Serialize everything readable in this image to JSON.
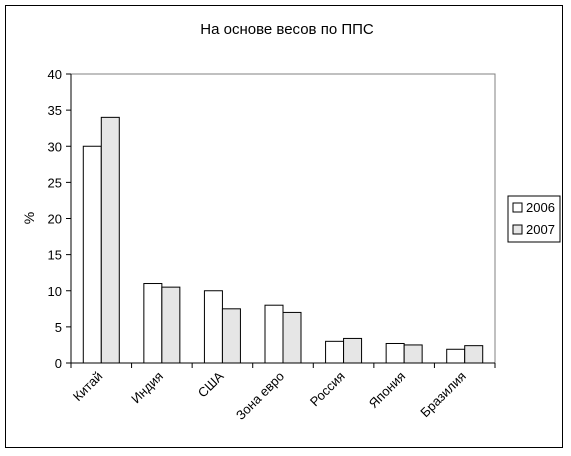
{
  "chart_data": {
    "type": "bar",
    "title": "На основе весов по ППС",
    "xlabel": "",
    "ylabel": "%",
    "ylim": [
      0,
      40
    ],
    "yticks": [
      0,
      5,
      10,
      15,
      20,
      25,
      30,
      35,
      40
    ],
    "categories": [
      "Китай",
      "Индия",
      "США",
      "Зона евро",
      "Россия",
      "Япония",
      "Бразилия"
    ],
    "series": [
      {
        "name": "2006",
        "color": "#ffffff",
        "values": [
          30,
          11,
          10,
          8,
          3,
          2.7,
          1.9
        ]
      },
      {
        "name": "2007",
        "color": "#e6e6e6",
        "values": [
          34,
          10.5,
          7.5,
          7,
          3.4,
          2.5,
          2.4
        ]
      }
    ],
    "grid": false,
    "legend": "right"
  }
}
